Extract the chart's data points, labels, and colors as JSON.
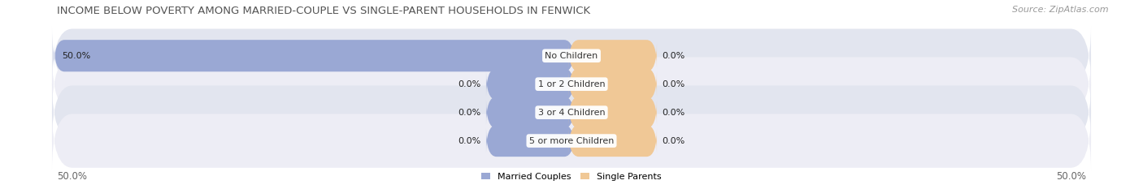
{
  "title": "INCOME BELOW POVERTY AMONG MARRIED-COUPLE VS SINGLE-PARENT HOUSEHOLDS IN FENWICK",
  "source": "Source: ZipAtlas.com",
  "categories": [
    "No Children",
    "1 or 2 Children",
    "3 or 4 Children",
    "5 or more Children"
  ],
  "married_values": [
    50.0,
    0.0,
    0.0,
    0.0
  ],
  "single_values": [
    0.0,
    0.0,
    0.0,
    0.0
  ],
  "married_color": "#9aa8d4",
  "single_color": "#f0c896",
  "row_bg_colors": [
    "#e2e5ef",
    "#ededf5"
  ],
  "axis_label_left": "50.0%",
  "axis_label_right": "50.0%",
  "legend_married": "Married Couples",
  "legend_single": "Single Parents",
  "title_fontsize": 9.5,
  "source_fontsize": 8,
  "label_fontsize": 8,
  "category_fontsize": 8,
  "axis_fontsize": 8.5,
  "max_val": 50.0,
  "small_bar_width": 8.0
}
